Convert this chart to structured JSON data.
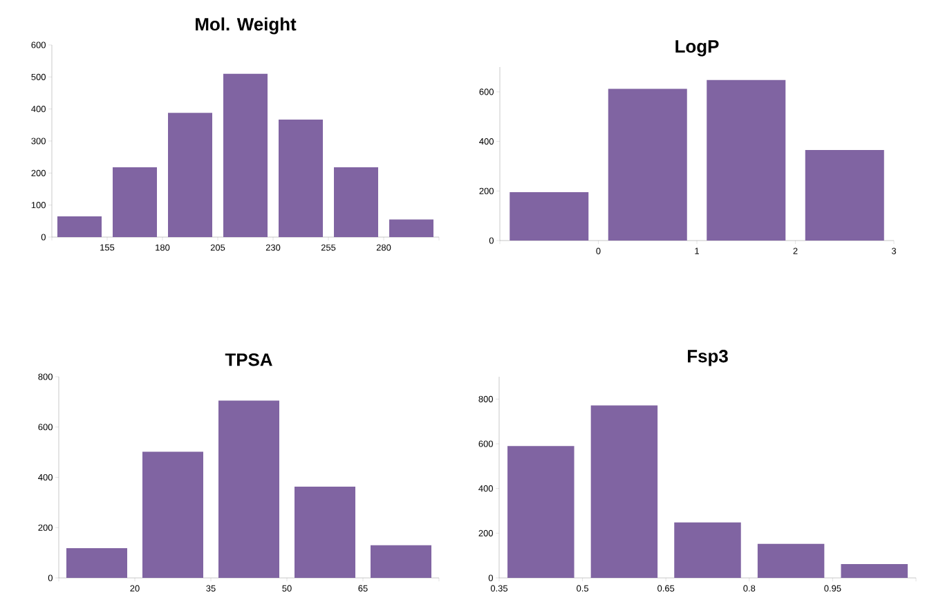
{
  "chart_data": [
    {
      "type": "histogram",
      "title": "Mol. Weight",
      "bins": [
        130,
        155,
        180,
        205,
        230,
        255,
        280,
        305
      ],
      "values": [
        65,
        218,
        388,
        510,
        367,
        218,
        55
      ],
      "color": "#8064a2",
      "xlim": [
        130,
        305
      ],
      "xticks": [
        {
          "value": 130,
          "label": null
        },
        155,
        180,
        205,
        230,
        255,
        280,
        {
          "value": 305,
          "label": null
        }
      ],
      "ylim": [
        0,
        600
      ],
      "yticks": [
        0,
        100,
        200,
        300,
        400,
        500,
        600
      ],
      "grid": false
    },
    {
      "type": "histogram",
      "title": "LogP",
      "bins": [
        -1,
        0,
        1,
        2,
        3
      ],
      "values": [
        195,
        612,
        648,
        365
      ],
      "color": "#8064a2",
      "xlim": [
        -1,
        3
      ],
      "xticks": [
        {
          "value": -1,
          "label": null
        },
        0,
        1,
        2,
        3
      ],
      "ylim": [
        0,
        700
      ],
      "yticks": [
        0,
        200,
        400,
        600
      ],
      "grid": false
    },
    {
      "type": "histogram",
      "title": "TPSA",
      "bins": [
        5,
        20,
        35,
        50,
        65,
        80
      ],
      "values": [
        118,
        502,
        705,
        363,
        130
      ],
      "color": "#8064a2",
      "xlim": [
        5,
        80
      ],
      "xticks": [
        {
          "value": 5,
          "label": null
        },
        20,
        35,
        50,
        65,
        {
          "value": 80,
          "label": null
        }
      ],
      "ylim": [
        0,
        800
      ],
      "yticks": [
        0,
        200,
        400,
        600,
        800
      ],
      "grid": false
    },
    {
      "type": "histogram",
      "title": "Fsp3",
      "bins": [
        0.35,
        0.5,
        0.65,
        0.8,
        0.95,
        1.1
      ],
      "values": [
        590,
        772,
        248,
        152,
        62
      ],
      "color": "#8064a2",
      "xlim": [
        0.35,
        1.1
      ],
      "xticks": [
        0.35,
        0.5,
        0.65,
        0.8,
        0.95,
        {
          "value": 1.1,
          "label": null
        }
      ],
      "ylim": [
        0,
        900
      ],
      "yticks": [
        0,
        200,
        400,
        600,
        800
      ],
      "grid": false
    }
  ]
}
